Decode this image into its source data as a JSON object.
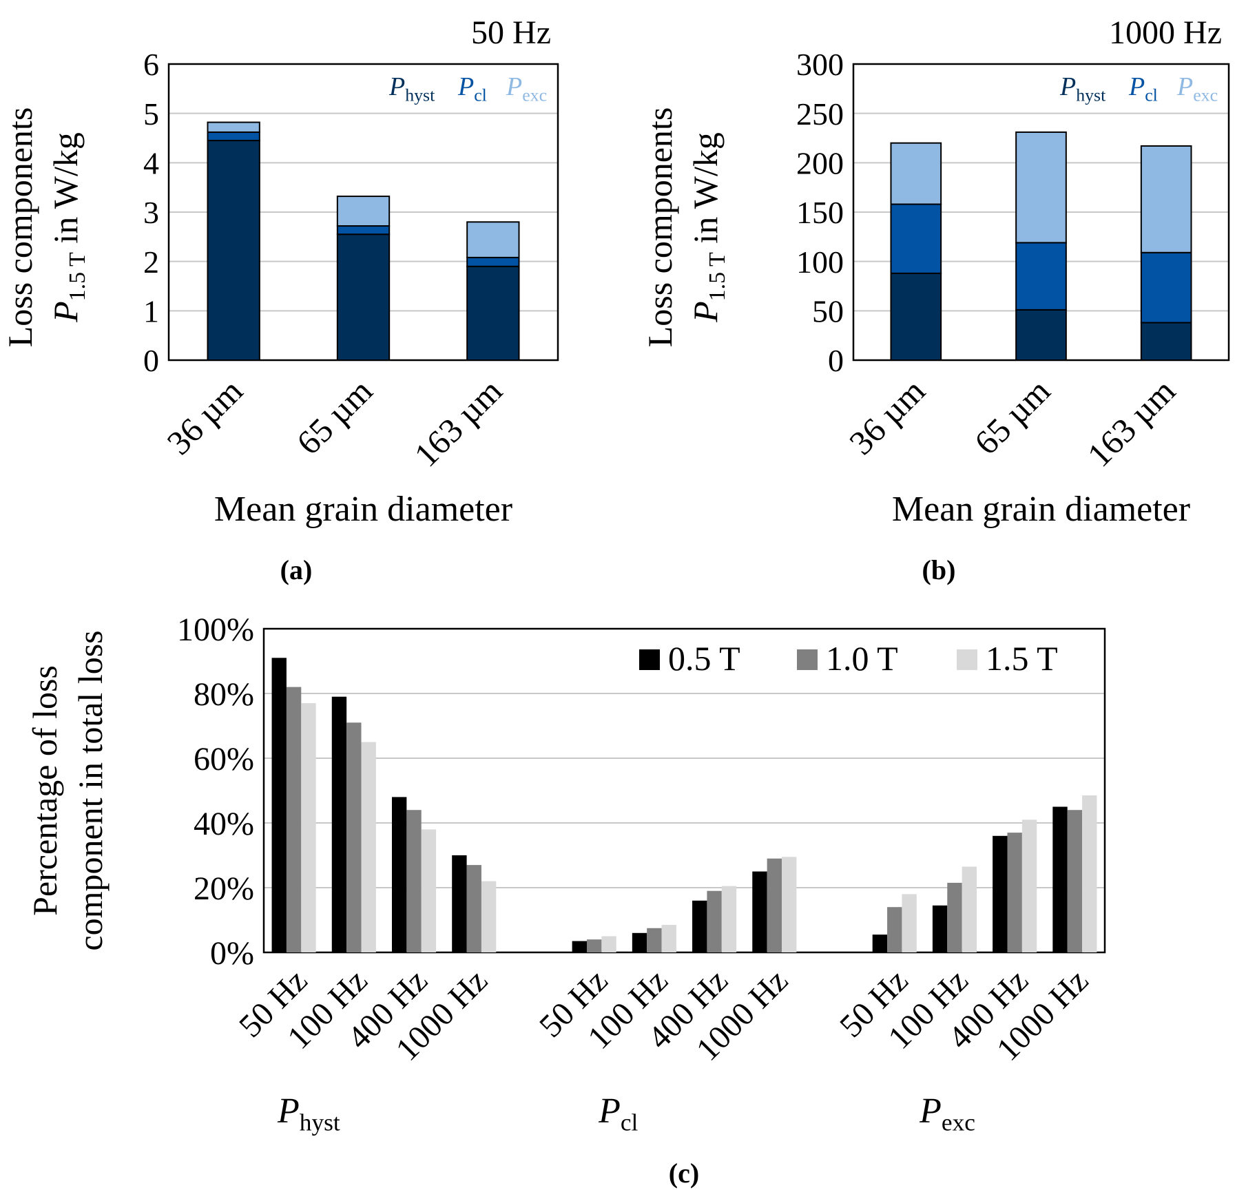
{
  "chart_data": [
    {
      "type": "bar",
      "stacked": true,
      "title": "50 Hz",
      "categories": [
        "36 µm",
        "65 µm",
        "163 µm"
      ],
      "series": [
        {
          "name": "P",
          "subscript": "hyst",
          "color": "#002f5a",
          "values": [
            4.45,
            2.55,
            1.9
          ]
        },
        {
          "name": "P",
          "subscript": "cl",
          "color": "#0353a4",
          "values": [
            0.17,
            0.17,
            0.18
          ]
        },
        {
          "name": "P",
          "subscript": "exc",
          "color": "#8fb9e3",
          "values": [
            0.2,
            0.6,
            0.72
          ]
        }
      ],
      "ylim": [
        0,
        6
      ],
      "yticks": [
        0,
        1,
        2,
        3,
        4,
        5,
        6
      ],
      "grid": true,
      "y_label": [
        "Loss components",
        {
          "symbol": "P",
          "subscript": "1.5 T",
          "text": " in W/kg"
        }
      ],
      "x_label": "Mean grain diameter",
      "caption": "(a)"
    },
    {
      "type": "bar",
      "stacked": true,
      "title": "1000 Hz",
      "categories": [
        "36 µm",
        "65 µm",
        "163 µm"
      ],
      "series": [
        {
          "name": "P",
          "subscript": "hyst",
          "color": "#002f5a",
          "values": [
            88,
            51,
            38
          ]
        },
        {
          "name": "P",
          "subscript": "cl",
          "color": "#0353a4",
          "values": [
            70,
            68,
            71
          ]
        },
        {
          "name": "P",
          "subscript": "exc",
          "color": "#8fb9e3",
          "values": [
            62,
            112,
            108
          ]
        }
      ],
      "ylim": [
        0,
        300
      ],
      "yticks": [
        0,
        50,
        100,
        150,
        200,
        250,
        300
      ],
      "grid": true,
      "y_label": [
        "Loss components",
        {
          "symbol": "P",
          "subscript": "1.5 T",
          "text": " in W/kg"
        }
      ],
      "x_label": "Mean grain diameter",
      "caption": "(b)"
    },
    {
      "type": "bar",
      "stacked": false,
      "categories": [
        "50 Hz",
        "100 Hz",
        "400 Hz",
        "1000 Hz",
        null,
        "50 Hz",
        "100 Hz",
        "400 Hz",
        "1000 Hz",
        null,
        "50 Hz",
        "100 Hz",
        "400 Hz",
        "1000 Hz"
      ],
      "groups": [
        {
          "symbol": "P",
          "subscript": "hyst"
        },
        {
          "symbol": "P",
          "subscript": "cl"
        },
        {
          "symbol": "P",
          "subscript": "exc"
        }
      ],
      "series": [
        {
          "name": "0.5 T",
          "color": "#000000",
          "values": [
            91,
            79,
            48,
            30,
            null,
            3.5,
            6,
            16,
            25,
            null,
            5.5,
            14.5,
            36,
            45
          ]
        },
        {
          "name": "1.0 T",
          "color": "#808080",
          "values": [
            82,
            71,
            44,
            27,
            null,
            4,
            7.5,
            19,
            29,
            null,
            14,
            21.5,
            37,
            44
          ]
        },
        {
          "name": "1.5 T",
          "color": "#d9d9d9",
          "values": [
            77,
            65,
            38,
            22,
            null,
            5,
            8.5,
            20.5,
            29.5,
            null,
            18,
            26.5,
            41,
            48.5
          ]
        }
      ],
      "ylim": [
        0,
        100
      ],
      "yticks": [
        {
          "value": 0,
          "label": "0%"
        },
        {
          "value": 20,
          "label": "20%"
        },
        {
          "value": 40,
          "label": "40%"
        },
        {
          "value": 60,
          "label": "60%"
        },
        {
          "value": 80,
          "label": "80%"
        },
        {
          "value": 100,
          "label": "100%"
        }
      ],
      "grid": true,
      "legend": "top-right",
      "y_label": [
        "Percentage of loss",
        "component in total loss"
      ],
      "caption": "(c)"
    }
  ]
}
